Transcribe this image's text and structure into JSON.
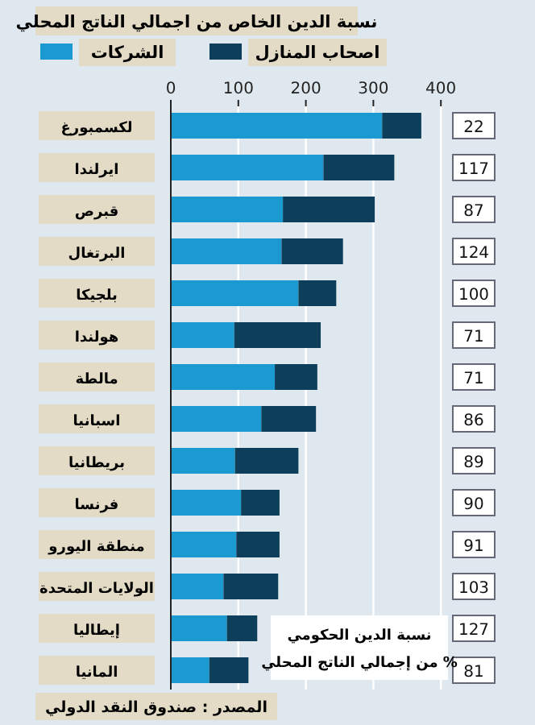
{
  "chart_data": {
    "type": "bar",
    "orientation": "horizontal",
    "stacked": true,
    "title": "نسبة الدين الخاص من اجمالي الناتج المحلي",
    "categories": [
      "لكسمبورغ",
      "ايرلندا",
      "قبرص",
      "البرتغال",
      "بلجيكا",
      "هولندا",
      "مالطة",
      "اسبانيا",
      "بريطانيا",
      "فرنسا",
      "منطقة اليورو",
      "الولايات المتحدة",
      "إيطاليا",
      "المانيا"
    ],
    "series": [
      {
        "name": "الشركات",
        "color": "#1b9ad2",
        "values": [
          313,
          226,
          166,
          164,
          189,
          94,
          154,
          134,
          95,
          104,
          97,
          78,
          83,
          57
        ]
      },
      {
        "name": "اصحاب المنازل",
        "color": "#0e3f5a",
        "values": [
          58,
          105,
          136,
          91,
          56,
          128,
          63,
          81,
          94,
          57,
          64,
          81,
          45,
          58
        ]
      }
    ],
    "xlim": [
      0,
      400
    ],
    "xticks": [
      0,
      100,
      200,
      300,
      400
    ],
    "grid": "x",
    "legend": "top",
    "annotations": [
      "22",
      "117",
      "87",
      "124",
      "100",
      "71",
      "71",
      "86",
      "89",
      "90",
      "91",
      "103",
      "127",
      "81",
      "نسبة الدين الحكومي من إجمالي الناتج المحلي %",
      "المصدر : صندوق النقد الدولي"
    ]
  }
}
